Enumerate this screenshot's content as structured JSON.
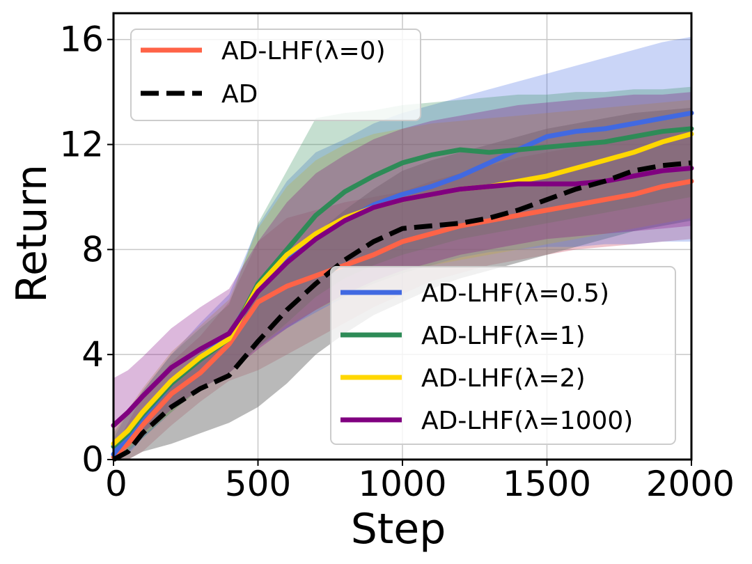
{
  "chart_data": {
    "type": "line",
    "title": "",
    "xlabel": "Step",
    "ylabel": "Return",
    "xlim": [
      0,
      2000
    ],
    "ylim": [
      0,
      17
    ],
    "xticks": [
      "0",
      "500",
      "1000",
      "1500",
      "2000"
    ],
    "yticks": [
      "0",
      "4",
      "8",
      "12",
      "16"
    ],
    "xtick_values": [
      0,
      500,
      1000,
      1500,
      2000
    ],
    "ytick_values": [
      0,
      4,
      8,
      12,
      16
    ],
    "grid": true,
    "x": [
      0,
      50,
      100,
      200,
      300,
      400,
      500,
      600,
      700,
      800,
      900,
      1000,
      1100,
      1200,
      1300,
      1400,
      1500,
      1600,
      1700,
      1800,
      1900,
      2000
    ],
    "series": [
      {
        "name": "AD-LHF(λ=0)",
        "color": "#FF6347",
        "dash": false,
        "legend": "upper-left",
        "values": [
          0.1,
          0.6,
          1.3,
          2.5,
          3.3,
          4.4,
          6.0,
          6.6,
          7.0,
          7.4,
          7.8,
          8.3,
          8.6,
          8.9,
          9.1,
          9.3,
          9.5,
          9.7,
          9.9,
          10.1,
          10.4,
          10.6
        ],
        "lower": [
          0,
          0,
          0.3,
          1.3,
          2.2,
          3.0,
          3.4,
          4.0,
          4.6,
          5.2,
          5.8,
          6.3,
          6.8,
          7.1,
          7.4,
          7.6,
          7.8,
          8.0,
          8.1,
          8.2,
          8.3,
          8.4
        ],
        "upper": [
          0.4,
          1.4,
          2.4,
          3.7,
          4.7,
          6.0,
          8.3,
          9.2,
          9.5,
          9.8,
          10.0,
          10.2,
          10.6,
          10.9,
          11.2,
          11.5,
          11.7,
          11.9,
          12.1,
          12.3,
          12.5,
          12.7
        ],
        "fill": "#D2526A",
        "fill_opacity": 0.35
      },
      {
        "name": "AD",
        "color": "#000000",
        "dash": true,
        "legend": "upper-left",
        "values": [
          0.0,
          0.3,
          1.0,
          2.0,
          2.7,
          3.2,
          4.5,
          5.7,
          6.7,
          7.6,
          8.3,
          8.8,
          8.9,
          9.0,
          9.2,
          9.5,
          9.9,
          10.3,
          10.6,
          11.0,
          11.2,
          11.3
        ],
        "lower": [
          0,
          0,
          0.3,
          0.6,
          1.0,
          1.4,
          2.0,
          2.9,
          4.0,
          4.8,
          5.5,
          6.0,
          6.5,
          6.9,
          7.2,
          7.5,
          7.8,
          8.1,
          8.4,
          8.7,
          8.9,
          9.1
        ],
        "upper": [
          0.2,
          0.8,
          1.8,
          3.1,
          3.9,
          4.7,
          6.3,
          7.6,
          8.6,
          9.5,
          10.3,
          11.0,
          11.4,
          11.7,
          12.0,
          12.3,
          12.6,
          12.8,
          13.0,
          13.2,
          13.3,
          13.4
        ],
        "fill": "#808080",
        "fill_opacity": 0.55
      },
      {
        "name": "AD-LHF(λ=0.5)",
        "color": "#4169E1",
        "dash": false,
        "legend": "lower-right",
        "values": [
          0.2,
          0.9,
          1.6,
          2.9,
          3.9,
          4.7,
          6.6,
          7.7,
          8.5,
          9.1,
          9.7,
          10.1,
          10.4,
          10.8,
          11.3,
          11.8,
          12.3,
          12.5,
          12.6,
          12.8,
          13.0,
          13.2
        ],
        "lower": [
          0,
          0.2,
          0.8,
          1.8,
          2.7,
          3.3,
          4.3,
          5.0,
          5.6,
          6.2,
          6.7,
          7.1,
          7.4,
          7.7,
          7.9,
          8.0,
          8.1,
          8.1,
          8.2,
          8.2,
          8.3,
          8.3
        ],
        "upper": [
          0.8,
          1.8,
          2.6,
          4.0,
          5.2,
          6.3,
          8.9,
          10.6,
          11.7,
          12.2,
          12.8,
          13.2,
          13.5,
          13.8,
          14.1,
          14.4,
          14.7,
          15.0,
          15.3,
          15.6,
          15.9,
          16.1
        ],
        "fill": "#4169E1",
        "fill_opacity": 0.28
      },
      {
        "name": "AD-LHF(λ=1)",
        "color": "#2E8B57",
        "dash": false,
        "legend": "lower-right",
        "values": [
          0.5,
          1.0,
          1.7,
          2.9,
          3.8,
          4.6,
          6.7,
          8.0,
          9.3,
          10.2,
          10.8,
          11.3,
          11.6,
          11.8,
          11.7,
          11.8,
          11.9,
          12.0,
          12.1,
          12.3,
          12.5,
          12.6
        ],
        "lower": [
          0,
          0.3,
          0.8,
          1.8,
          2.7,
          3.3,
          4.3,
          5.2,
          6.2,
          6.9,
          7.4,
          7.8,
          8.1,
          8.4,
          8.6,
          8.8,
          9.0,
          9.2,
          9.4,
          9.6,
          9.8,
          10.0
        ],
        "upper": [
          1.0,
          1.8,
          2.6,
          4.0,
          5.0,
          5.9,
          9.0,
          11.0,
          13.0,
          13.2,
          13.3,
          13.5,
          13.6,
          13.7,
          13.8,
          13.9,
          13.9,
          14.0,
          14.0,
          14.1,
          14.1,
          14.2
        ],
        "fill": "#2E8B57",
        "fill_opacity": 0.28
      },
      {
        "name": "AD-LHF(λ=2)",
        "color": "#FFD700",
        "dash": false,
        "legend": "lower-right",
        "values": [
          0.6,
          1.1,
          1.8,
          3.0,
          3.9,
          4.6,
          6.6,
          7.8,
          8.6,
          9.2,
          9.6,
          9.9,
          10.1,
          10.3,
          10.4,
          10.6,
          10.8,
          11.1,
          11.4,
          11.7,
          12.1,
          12.4
        ],
        "lower": [
          0,
          0.4,
          0.9,
          1.8,
          2.7,
          3.3,
          4.3,
          5.1,
          5.7,
          6.2,
          6.7,
          7.1,
          7.4,
          7.6,
          7.8,
          8.0,
          8.2,
          8.4,
          8.6,
          8.8,
          9.0,
          9.2
        ],
        "upper": [
          1.1,
          1.9,
          2.7,
          4.1,
          5.1,
          6.1,
          8.8,
          10.4,
          11.4,
          12.0,
          12.4,
          12.6,
          12.8,
          12.9,
          13.0,
          13.1,
          13.2,
          13.3,
          13.4,
          13.5,
          13.6,
          13.7
        ],
        "fill": "#BDB03A",
        "fill_opacity": 0.3
      },
      {
        "name": "AD-LHF(λ=1000)",
        "color": "#800080",
        "dash": false,
        "legend": "lower-right",
        "values": [
          1.3,
          1.8,
          2.4,
          3.5,
          4.2,
          4.8,
          6.4,
          7.5,
          8.4,
          9.1,
          9.6,
          9.9,
          10.1,
          10.3,
          10.4,
          10.5,
          10.5,
          10.5,
          10.6,
          10.8,
          11.0,
          11.1
        ],
        "lower": [
          0.2,
          0.5,
          1.0,
          1.9,
          2.7,
          3.3,
          4.2,
          5.0,
          5.7,
          6.3,
          6.8,
          7.2,
          7.5,
          7.8,
          8.0,
          8.2,
          8.4,
          8.5,
          8.6,
          8.7,
          8.8,
          8.9
        ],
        "upper": [
          3.1,
          3.4,
          3.9,
          5.0,
          5.8,
          6.5,
          8.3,
          9.8,
          10.9,
          11.6,
          12.2,
          12.6,
          12.9,
          13.1,
          13.3,
          13.5,
          13.6,
          13.7,
          13.8,
          13.9,
          13.9,
          14.0
        ],
        "fill": "#800080",
        "fill_opacity": 0.28
      }
    ],
    "legends": [
      {
        "placement": "upper-left",
        "entries": [
          "AD-LHF(λ=0)",
          "AD"
        ]
      },
      {
        "placement": "lower-right",
        "entries": [
          "AD-LHF(λ=0.5)",
          "AD-LHF(λ=1)",
          "AD-LHF(λ=2)",
          "AD-LHF(λ=1000)"
        ]
      }
    ]
  }
}
